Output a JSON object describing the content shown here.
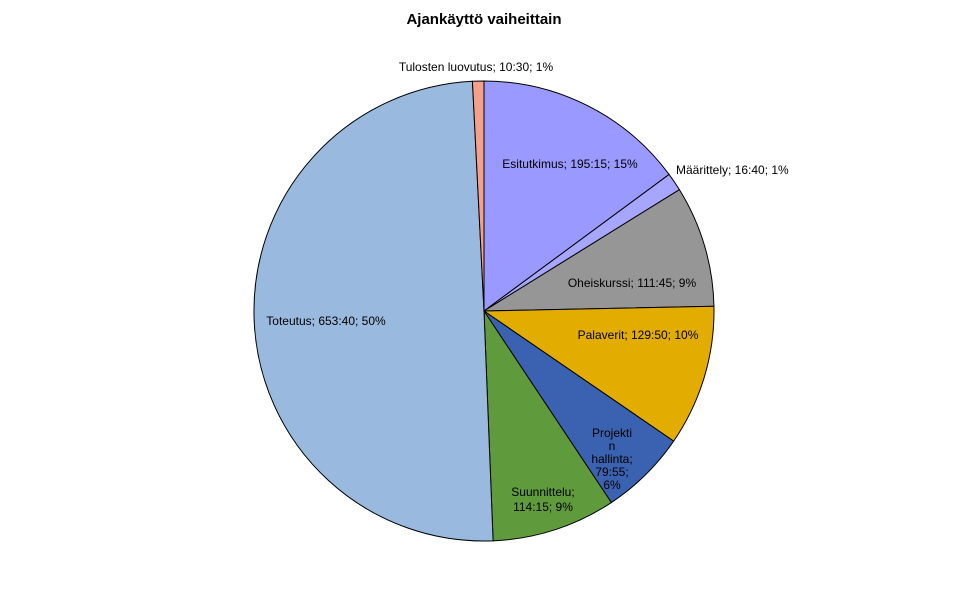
{
  "chart_data": {
    "type": "pie",
    "title": "Ajankäyttö vaiheittain",
    "slices": [
      {
        "name": "Esitutkimus",
        "time": "195:15",
        "percent": "15%",
        "value": 195.25,
        "color": "#9999ff",
        "label_lines": [
          "Esitutkimus; 195:15; 15%"
        ]
      },
      {
        "name": "Määrittely",
        "time": "16:40",
        "percent": "1%",
        "value": 16.667,
        "color": "#a6a6ff",
        "label_lines": [
          "Määrittely; 16:40; 1%"
        ]
      },
      {
        "name": "Oheiskurssi",
        "time": "111:45",
        "percent": "9%",
        "value": 111.75,
        "color": "#969696",
        "label_lines": [
          "Oheiskurssi; 111:45; 9%"
        ]
      },
      {
        "name": "Palaverit",
        "time": "129:50",
        "percent": "10%",
        "value": 129.833,
        "color": "#e3ac00",
        "label_lines": [
          "Palaverit; 129:50; 10%"
        ]
      },
      {
        "name": "Projektin hallinta",
        "time": "79:55",
        "percent": "6%",
        "value": 79.917,
        "color": "#3a62b0",
        "label_lines": [
          "Projekti",
          "n",
          "hallinta;",
          "79:55;",
          "6%"
        ]
      },
      {
        "name": "Suunnittelu",
        "time": "114:15",
        "percent": "9%",
        "value": 114.25,
        "color": "#5f9a3d",
        "label_lines": [
          "Suunnittelu;",
          "114:15; 9%"
        ]
      },
      {
        "name": "Toteutus",
        "time": "653:40",
        "percent": "50%",
        "value": 653.667,
        "color": "#99b9df",
        "label_lines": [
          "Toteutus; 653:40; 50%"
        ]
      },
      {
        "name": "Tulosten luovutus",
        "time": "10:30",
        "percent": "1%",
        "value": 10.5,
        "color": "#f4a08a",
        "label_lines": [
          "Tulosten luovutus; 10:30; 1%"
        ]
      }
    ],
    "start_angle": "top",
    "direction": "clockwise",
    "legend": "none"
  }
}
